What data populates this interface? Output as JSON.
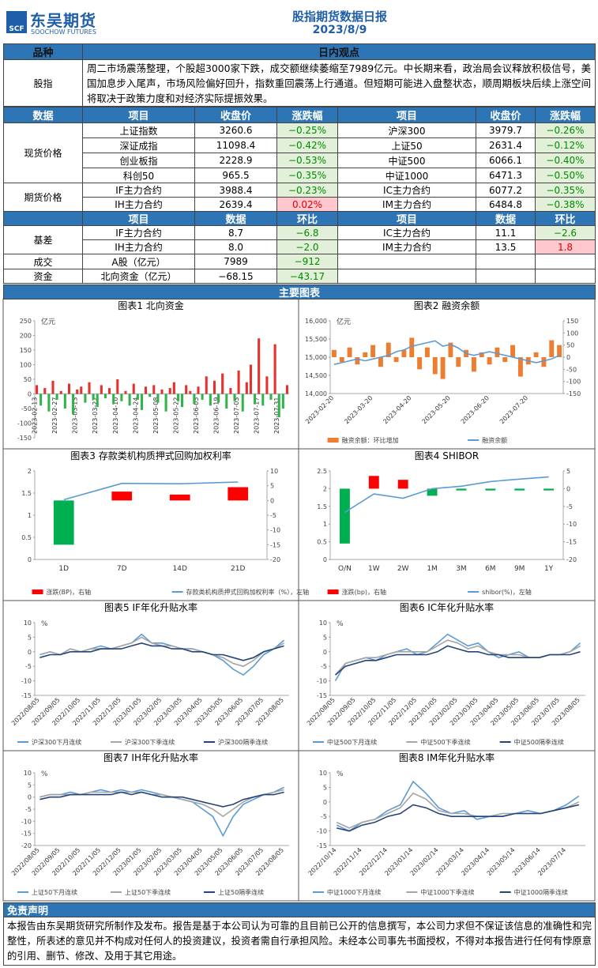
{
  "header": {
    "logo_mark": "SCF",
    "logo": "东吴期货",
    "logo_sub": "SOOCHOW FUTURES",
    "title": "股指期货数据日报",
    "date": "2023/8/9"
  },
  "view": {
    "head": [
      "品种",
      "日内观点"
    ],
    "label": "股指",
    "text": "周二市场震荡整理，个股超3000家下跌，成交额继续萎缩至7989亿元。中长期来看，政治局会议释放积极信号，美国加息步入尾声，市场风险偏好回升，指数重回震荡上行通道。但短期可能进入盘整状态，顺周期板块后续上涨空间将取决于政策力度和对经济实际提振效果。"
  },
  "prices": {
    "head": [
      "数据",
      "项目",
      "收盘价",
      "涨跌幅",
      "项目",
      "收盘价",
      "涨跌幅"
    ],
    "groups": [
      {
        "label": "现货价格",
        "rows": [
          [
            "上证指数",
            "3260.6",
            "−0.25%",
            "沪深300",
            "3979.7",
            "−0.26%"
          ],
          [
            "深证成指",
            "11098.4",
            "−0.42%",
            "上证50",
            "2631.4",
            "−0.12%"
          ],
          [
            "创业板指",
            "2228.9",
            "−0.53%",
            "中证500",
            "6066.1",
            "−0.40%"
          ],
          [
            "科创50",
            "965.5",
            "−0.35%",
            "中证1000",
            "6471.3",
            "−0.50%"
          ]
        ]
      },
      {
        "label": "期货价格",
        "rows": [
          [
            "IF主力合约",
            "3988.4",
            "−0.23%",
            "IC主力合约",
            "6077.2",
            "−0.35%"
          ],
          [
            "IH主力合约",
            "2639.4",
            "0.02%",
            "IM主力合约",
            "6484.8",
            "−0.38%"
          ]
        ]
      }
    ]
  },
  "basis": {
    "head": [
      "项目",
      "数据",
      "环比",
      "项目",
      "数据",
      "环比"
    ],
    "groups": [
      {
        "label": "基差",
        "rows": [
          [
            "IF主力合约",
            "8.7",
            "−6.8",
            "IC主力合约",
            "11.1",
            "−2.6"
          ],
          [
            "IH主力合约",
            "8.0",
            "−2.0",
            "IM主力合约",
            "13.5",
            "1.8"
          ]
        ]
      },
      {
        "label": "成交",
        "rows": [
          [
            "A股（亿元）",
            "7989",
            "−912"
          ]
        ]
      },
      {
        "label": "资金",
        "rows": [
          [
            "北向资金（亿元）",
            "−68.15",
            "−43.17"
          ]
        ]
      }
    ]
  },
  "charts_heading": "主要图表",
  "disclaimer": {
    "title": "免责声明",
    "text": "本报告由东吴期货研究所制作及发布。报告是基于本公司认为可靠的且目前已公开的信息撰写，本公司力求但不保证该信息的准确性和完整性，所表述的意见并不构成对任何人的投资建议，投资者需自行承担风险。未经本公司事先书面授权，不得对本报告进行任何有悖原意的引用、删节、修改、及用于其它用途。"
  },
  "chart_data": [
    {
      "type": "bar",
      "title": "图表1  北向资金",
      "unit": "亿元",
      "legend": false,
      "x_label_rotation": -90,
      "ylim": [
        -150,
        250
      ],
      "yticks": [
        -150,
        -100,
        -50,
        0,
        50,
        100,
        150,
        200,
        250
      ],
      "categories": [
        "2023-02-13",
        null,
        null,
        null,
        null,
        "2023-02-27",
        null,
        null,
        null,
        null,
        "2023-03-13",
        null,
        null,
        null,
        null,
        "2023-03-27",
        null,
        null,
        null,
        null,
        "2023-04-10",
        null,
        null,
        null,
        null,
        "2023-04-24",
        null,
        null,
        null,
        null,
        "2023-05-08",
        null,
        null,
        null,
        null,
        "2023-05-22",
        null,
        null,
        null,
        null,
        "2023-06-05",
        null,
        null,
        null,
        null,
        "2023-06-19",
        null,
        null,
        null,
        null,
        "2023-07-03",
        null,
        null,
        null,
        null,
        "2023-07-17",
        null,
        null,
        null,
        null,
        "2023-07-31",
        null,
        null
      ],
      "series": [
        {
          "type": "bar",
          "color": "#e8302a",
          "negative_color": "#2fb34a",
          "values": [
            30,
            -40,
            20,
            -60,
            45,
            -20,
            10,
            -50,
            35,
            -70,
            15,
            25,
            -30,
            40,
            -20,
            -45,
            30,
            -15,
            20,
            -35,
            50,
            -25,
            10,
            -40,
            35,
            -20,
            -55,
            25,
            -10,
            30,
            -30,
            15,
            -60,
            20,
            40,
            -25,
            -45,
            30,
            10,
            -35,
            25,
            -20,
            60,
            -40,
            45,
            -30,
            70,
            -50,
            20,
            -25,
            80,
            -60,
            40,
            100,
            -35,
            190,
            -40,
            60,
            -20,
            170,
            -80,
            -50,
            30
          ]
        }
      ]
    },
    {
      "type": "combo",
      "title": "图表2  融资余额",
      "unit": "亿元",
      "legend": true,
      "x_label_rotation": -45,
      "ylim": [
        14000,
        16000
      ],
      "yticks": [
        {
          "value": 14000,
          "label": "14,000"
        },
        {
          "value": 14500,
          "label": "14,500"
        },
        {
          "value": 15000,
          "label": "15,000"
        },
        {
          "value": 15500,
          "label": "15,500"
        },
        {
          "value": 16000,
          "label": "16,000"
        }
      ],
      "y2lim": [
        -150,
        150
      ],
      "y2ticks": [
        -150,
        -100,
        -50,
        0,
        50,
        100,
        150
      ],
      "categories": [
        "2023-02-20",
        null,
        null,
        null,
        null,
        "2023-03-20",
        null,
        null,
        null,
        null,
        "2023-04-20",
        null,
        null,
        null,
        null,
        "2023-05-20",
        null,
        null,
        null,
        null,
        "2023-06-20",
        null,
        null,
        null,
        null,
        "2023-07-20",
        null,
        null,
        null,
        null
      ],
      "series": [
        {
          "name": "融资余额：环比增加",
          "type": "bar",
          "axis": "y2",
          "color": "#ed7d31",
          "values": [
            30,
            -20,
            40,
            -30,
            20,
            50,
            -40,
            60,
            -20,
            30,
            80,
            -50,
            40,
            -70,
            -90,
            60,
            -40,
            30,
            -60,
            20,
            -30,
            40,
            -20,
            50,
            -80,
            -30,
            20,
            -40,
            70,
            50
          ]
        },
        {
          "name": "融资余额",
          "type": "line",
          "color": "#5b9bd5",
          "values": [
            14800,
            14850,
            14900,
            14950,
            14900,
            14950,
            15000,
            15050,
            15150,
            15200,
            15300,
            15350,
            15400,
            15450,
            15300,
            15350,
            15250,
            15100,
            15050,
            15100,
            15150,
            15100,
            15050,
            15000,
            14950,
            14900,
            14850,
            14900,
            14950,
            15050
          ]
        }
      ]
    },
    {
      "type": "combo",
      "title": "图表3  存款类机构质押式回购加权利率",
      "legend": true,
      "x_label_rotation": 0,
      "ylim": [
        0,
        2
      ],
      "yticks": [
        0,
        0.5,
        1,
        1.5,
        2
      ],
      "y2lim": [
        -20,
        10
      ],
      "y2ticks": [
        -20,
        -15,
        -10,
        -5,
        0,
        5,
        10
      ],
      "categories": [
        "1D",
        "7D",
        "14D",
        "21D"
      ],
      "series": [
        {
          "name": "涨跌(BP)，右轴",
          "type": "bar",
          "axis": "y2",
          "color": "#ff0000",
          "negative_color": "#00b050",
          "values": [
            -15,
            3,
            2,
            4.5
          ]
        },
        {
          "name": "存款类机构质押式回购加权利率（%），左轴",
          "type": "line",
          "color": "#5b9bd5",
          "values": [
            1.35,
            1.72,
            1.71,
            1.75
          ]
        }
      ]
    },
    {
      "type": "combo",
      "title": "图表4  SHIBOR",
      "legend": true,
      "x_label_rotation": 0,
      "ylim": [
        0,
        2.5
      ],
      "yticks": [
        0,
        0.5,
        1,
        1.5,
        2,
        2.5
      ],
      "y2lim": [
        -20,
        5
      ],
      "y2ticks": [
        -20,
        -15,
        -10,
        -5,
        0,
        5
      ],
      "categories": [
        "O/N",
        "1W",
        "2W",
        "1M",
        "3M",
        "6M",
        "9M",
        "1Y"
      ],
      "series": [
        {
          "name": "涨跌(bp)，右轴",
          "type": "bar",
          "axis": "y2",
          "color": "#ff0000",
          "negative_color": "#00b050",
          "values": [
            -15.5,
            3.6,
            2.5,
            -2,
            -0.5,
            -0.5,
            -0.5,
            -0.5
          ]
        },
        {
          "name": "shibor(%)，左轴",
          "type": "line",
          "color": "#5b9bd5",
          "values": [
            1.33,
            1.85,
            1.73,
            2.0,
            2.07,
            2.2,
            2.27,
            2.33
          ]
        }
      ]
    },
    {
      "type": "line",
      "title": "图表5  IF年化升贴水率",
      "unit": "%",
      "legend": true,
      "x_label_rotation": -45,
      "ylim": [
        -15,
        10
      ],
      "yticks": [
        -15,
        -10,
        -5,
        0,
        5,
        10
      ],
      "categories": [
        "2022/08/05",
        null,
        "2022/09/05",
        null,
        "2022/10/05",
        null,
        "2022/11/05",
        null,
        "2022/12/05",
        null,
        "2023/01/05",
        null,
        "2023/02/05",
        null,
        "2023/03/05",
        null,
        "2023/04/05",
        null,
        "2023/05/05",
        null,
        "2023/06/05",
        null,
        "2023/07/05",
        null,
        "2023/08/05"
      ],
      "series": [
        {
          "name": "沪深300下月连续",
          "type": "line",
          "color": "#5b9bd5",
          "values": [
            -1,
            0,
            -1,
            1,
            0,
            1,
            2,
            1,
            2,
            3,
            6,
            3,
            3,
            2,
            1,
            1,
            0,
            -1,
            -3,
            -6,
            -8,
            -5,
            -1,
            1,
            4
          ]
        },
        {
          "name": "沪深300下季连续",
          "type": "line",
          "color": "#a5a5a5",
          "values": [
            -1,
            0,
            -1,
            1,
            0,
            1,
            1,
            1,
            2,
            3,
            5,
            3,
            2,
            2,
            1,
            1,
            0,
            -1,
            -2,
            -4,
            -5,
            -3,
            0,
            1,
            3
          ]
        },
        {
          "name": "沪深300隔季连续",
          "type": "line",
          "color": "#264478",
          "values": [
            -2,
            -1,
            -1,
            0,
            0,
            0,
            1,
            1,
            1,
            2,
            3,
            2,
            2,
            1,
            1,
            0,
            0,
            -1,
            -1,
            -2,
            -3,
            -2,
            0,
            1,
            2
          ]
        }
      ]
    },
    {
      "type": "line",
      "title": "图表6  IC年化升贴水率",
      "unit": "%",
      "legend": true,
      "x_label_rotation": -45,
      "ylim": [
        -15,
        10
      ],
      "yticks": [
        -15,
        -10,
        -5,
        0,
        5,
        10
      ],
      "categories": [
        "2022/08/05",
        null,
        "2022/09/05",
        null,
        "2022/10/05",
        null,
        "2022/11/05",
        null,
        "2022/12/05",
        null,
        "2023/01/05",
        null,
        "2023/02/05",
        null,
        "2023/03/05",
        null,
        "2023/04/05",
        null,
        "2023/05/05",
        null,
        "2023/06/05",
        null,
        "2023/07/05",
        null,
        "2023/08/05"
      ],
      "series": [
        {
          "name": "中证500下月连续",
          "type": "line",
          "color": "#5b9bd5",
          "values": [
            -10,
            -4,
            -3,
            -2,
            -3,
            -1,
            0,
            1,
            -1,
            0,
            3,
            6,
            4,
            2,
            3,
            0,
            -2,
            -1,
            0,
            -2,
            -2,
            -1,
            -1,
            0,
            3
          ]
        },
        {
          "name": "中证500下季连续",
          "type": "line",
          "color": "#a5a5a5",
          "values": [
            -8,
            -4,
            -3,
            -2,
            -2,
            -1,
            0,
            0,
            0,
            0,
            2,
            4,
            3,
            1,
            2,
            0,
            -1,
            -1,
            -1,
            -2,
            -2,
            -1,
            -1,
            0,
            2
          ]
        },
        {
          "name": "中证500隔季连续",
          "type": "line",
          "color": "#264478",
          "values": [
            -8,
            -5,
            -4,
            -3,
            -3,
            -2,
            -1,
            -1,
            -1,
            -1,
            0,
            2,
            1,
            0,
            0,
            -1,
            -1,
            -2,
            -2,
            -2,
            -2,
            -1,
            -1,
            -1,
            0
          ]
        }
      ]
    },
    {
      "type": "line",
      "title": "图表7  IH年化升贴水率",
      "unit": "%",
      "legend": true,
      "x_label_rotation": -45,
      "ylim": [
        -20,
        10
      ],
      "yticks": [
        -20,
        -15,
        -10,
        -5,
        0,
        5,
        10
      ],
      "categories": [
        "2022/08/05",
        null,
        "2022/09/05",
        null,
        "2022/10/05",
        null,
        "2022/11/05",
        null,
        "2022/12/05",
        null,
        "2023/01/05",
        null,
        "2023/02/05",
        null,
        "2023/03/05",
        null,
        "2023/04/05",
        null,
        "2023/05/05",
        null,
        "2023/06/05",
        null,
        "2023/07/05",
        null,
        "2023/08/05"
      ],
      "series": [
        {
          "name": "上证50下月连续",
          "type": "line",
          "color": "#5b9bd5",
          "values": [
            0,
            1,
            1,
            2,
            1,
            2,
            3,
            2,
            3,
            2,
            3,
            2,
            1,
            0,
            -1,
            -2,
            -5,
            -8,
            -16,
            -8,
            -3,
            -1,
            1,
            2,
            4
          ]
        },
        {
          "name": "上证50下季连续",
          "type": "line",
          "color": "#a5a5a5",
          "values": [
            0,
            1,
            1,
            1,
            1,
            2,
            2,
            2,
            2,
            2,
            2,
            1,
            1,
            0,
            -1,
            -2,
            -3,
            -5,
            -8,
            -5,
            -2,
            0,
            1,
            2,
            3
          ]
        },
        {
          "name": "上证50隔季连续",
          "type": "line",
          "color": "#264478",
          "values": [
            -1,
            0,
            0,
            1,
            1,
            1,
            1,
            1,
            2,
            1,
            2,
            1,
            0,
            0,
            0,
            -1,
            -2,
            -3,
            -4,
            -3,
            -1,
            0,
            1,
            1,
            2
          ]
        }
      ]
    },
    {
      "type": "line",
      "title": "图表8  IM年化升贴水率",
      "unit": "%",
      "legend": true,
      "x_label_rotation": -45,
      "ylim": [
        -15,
        10
      ],
      "yticks": [
        -15,
        -10,
        -5,
        0,
        5,
        10
      ],
      "categories": [
        "2022/10/14",
        null,
        "2022/11/14",
        null,
        "2022/12/14",
        null,
        "2023/01/14",
        null,
        "2023/02/14",
        null,
        "2023/03/14",
        null,
        "2023/04/14",
        null,
        "2023/05/14",
        null,
        "2023/06/14",
        null,
        "2023/07/14",
        null
      ],
      "series": [
        {
          "name": "中证1000下月连续",
          "type": "line",
          "color": "#5b9bd5",
          "values": [
            -8,
            -10,
            -7,
            -6,
            -3,
            -1,
            7,
            3,
            -2,
            -4,
            -3,
            -6,
            -5,
            -5,
            -4,
            -3,
            -4,
            -3,
            -1,
            2
          ]
        },
        {
          "name": "中证1000下季连续",
          "type": "line",
          "color": "#a5a5a5",
          "values": [
            -7,
            -9,
            -7,
            -6,
            -4,
            -2,
            3,
            1,
            -3,
            -4,
            -4,
            -5,
            -5,
            -4,
            -4,
            -4,
            -4,
            -3,
            -2,
            0
          ]
        },
        {
          "name": "中证1000隔季连续",
          "type": "line",
          "color": "#264478",
          "values": [
            -9,
            -10,
            -8,
            -7,
            -5,
            -4,
            -1,
            -2,
            -4,
            -5,
            -5,
            -5,
            -5,
            -5,
            -4,
            -4,
            -4,
            -3,
            -2,
            -1
          ]
        }
      ]
    }
  ]
}
